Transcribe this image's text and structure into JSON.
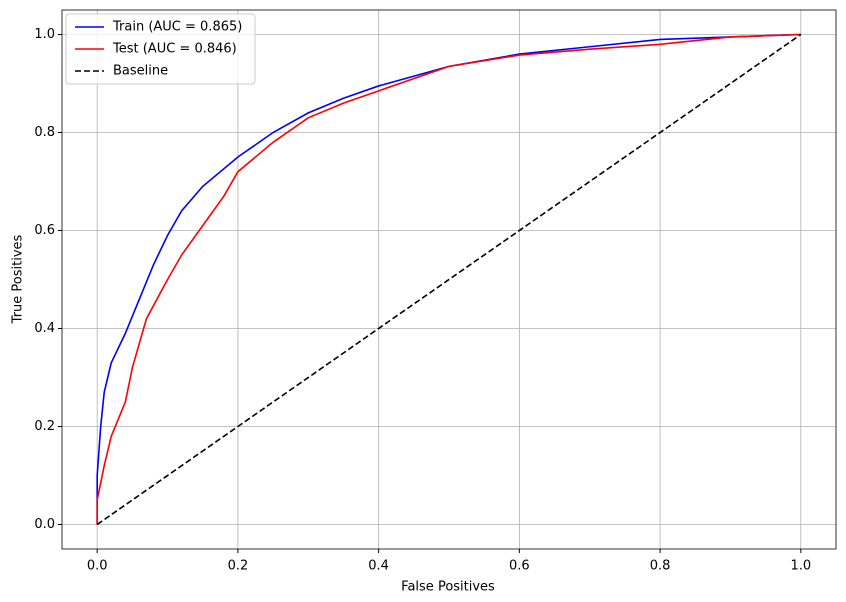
{
  "chart_data": {
    "type": "line",
    "xlabel": "False Positives",
    "ylabel": "True Positives",
    "xlim": [
      -0.05,
      1.05
    ],
    "ylim": [
      -0.05,
      1.05
    ],
    "xticks": [
      {
        "value": 0,
        "label": "0.0"
      },
      0.2,
      0.4,
      0.6,
      0.8,
      {
        "value": 1,
        "label": "1.0"
      }
    ],
    "yticks": [
      {
        "value": 0,
        "label": "0.0"
      },
      0.2,
      0.4,
      0.6,
      0.8,
      {
        "value": 1,
        "label": "1.0"
      }
    ],
    "grid": true,
    "legend": "upper left",
    "series": [
      {
        "name": "Train (AUC = 0.865)",
        "color": "#0000ff",
        "linestyle": "solid",
        "x": [
          0,
          0,
          0.005,
          0.01,
          0.02,
          0.04,
          0.06,
          0.08,
          0.1,
          0.12,
          0.15,
          0.2,
          0.25,
          0.3,
          0.35,
          0.4,
          0.5,
          0.6,
          0.7,
          0.8,
          0.9,
          1
        ],
        "values": [
          0,
          0.1,
          0.2,
          0.27,
          0.33,
          0.39,
          0.46,
          0.53,
          0.59,
          0.64,
          0.69,
          0.75,
          0.8,
          0.84,
          0.87,
          0.895,
          0.935,
          0.96,
          0.975,
          0.99,
          0.995,
          1
        ]
      },
      {
        "name": "Test (AUC = 0.846)",
        "color": "#ff0000",
        "linestyle": "solid",
        "x": [
          0,
          0,
          0.01,
          0.02,
          0.04,
          0.05,
          0.07,
          0.1,
          0.12,
          0.15,
          0.18,
          0.2,
          0.25,
          0.3,
          0.35,
          0.4,
          0.5,
          0.6,
          0.7,
          0.8,
          0.9,
          1
        ],
        "values": [
          0,
          0.05,
          0.12,
          0.18,
          0.25,
          0.32,
          0.42,
          0.5,
          0.55,
          0.61,
          0.67,
          0.72,
          0.78,
          0.83,
          0.86,
          0.885,
          0.935,
          0.958,
          0.97,
          0.98,
          0.995,
          1
        ]
      },
      {
        "name": "Baseline",
        "color": "#000000",
        "linestyle": "dashed",
        "x": [
          0,
          1
        ],
        "values": [
          0,
          1
        ]
      }
    ]
  }
}
